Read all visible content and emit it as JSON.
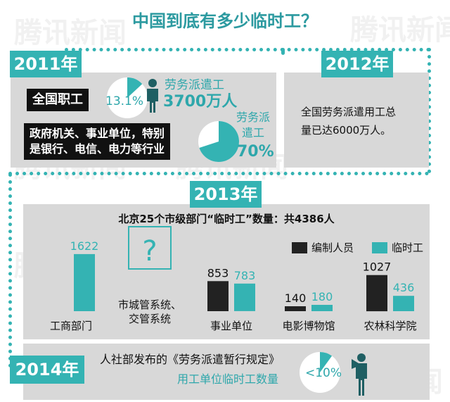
{
  "title": "中国到底有多少临时工？",
  "watermark": "腾讯新闻",
  "colors": {
    "teal": "#34b3b3",
    "dark": "#222222",
    "panel": "#d8d8d8"
  },
  "y2011": {
    "tag": "2011年",
    "label1": "全国职工",
    "pct1": "13.1%",
    "dispatch_label1": "劳务派遣工",
    "dispatch_count": "3700万人",
    "label2_line1": "政府机关、事业单位，特别",
    "label2_line2": "是银行、电信、电力等行业",
    "dispatch_label2_line1": "劳务派",
    "dispatch_label2_line2": "遣工",
    "pct2": "70%",
    "pie1_fraction": 0.131,
    "pie2_fraction": 0.7
  },
  "y2012": {
    "tag": "2012年",
    "text_line1": "全国劳务派遣用工总",
    "text_line2": "量已达6000万人。"
  },
  "y2013": {
    "tag": "2013年",
    "unknown_mark": "?"
  },
  "y2014": {
    "tag": "2014年",
    "line1": "人社部发布的《劳务派遣暂行规定》",
    "line2": "用工单位临时工数量",
    "pct": "<10%",
    "pie_fraction": 0.1
  },
  "chart_data": {
    "type": "bar",
    "title": "北京25个市级部门“临时工”数量：共4386人",
    "categories": [
      "工商部门",
      "市城管系统、交管系统",
      "事业单位",
      "电影博物馆",
      "农林科学院"
    ],
    "category_lines": [
      [
        "工商部门"
      ],
      [
        "市城管系统、",
        "交管系统"
      ],
      [
        "事业单位"
      ],
      [
        "电影博物馆"
      ],
      [
        "农林科学院"
      ]
    ],
    "series": [
      {
        "name": "编制人员",
        "values": [
          null,
          null,
          853,
          140,
          1027
        ]
      },
      {
        "name": "临时工",
        "values": [
          1622,
          null,
          783,
          180,
          436
        ]
      }
    ],
    "legend_position": "top-right"
  }
}
